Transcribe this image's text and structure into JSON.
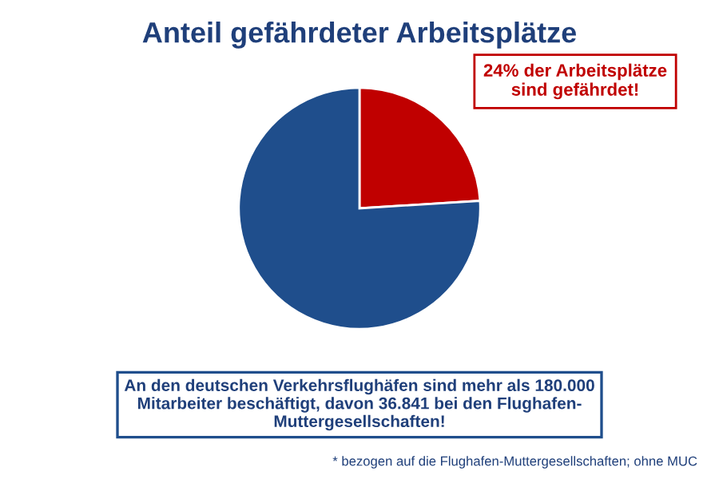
{
  "chart_data": {
    "type": "pie",
    "title": "Anteil gefährdeter Arbeitsplätze",
    "categories": [
      null,
      null
    ],
    "values": [
      24,
      76
    ],
    "colors": [
      "#c00000",
      "#1f4e8c"
    ],
    "annotations": [
      "24% der Arbeitsplätze\nsind gefährdet!",
      "An den deutschen Verkehrsflughäfen sind mehr als 180.000\nMitarbeiter beschäftigt, davon 36.841 bei den Flughafen-\nMuttergesellschaften!",
      "* bezogen auf die Flughafen-Muttergesellschaften; ohne MUC"
    ]
  }
}
